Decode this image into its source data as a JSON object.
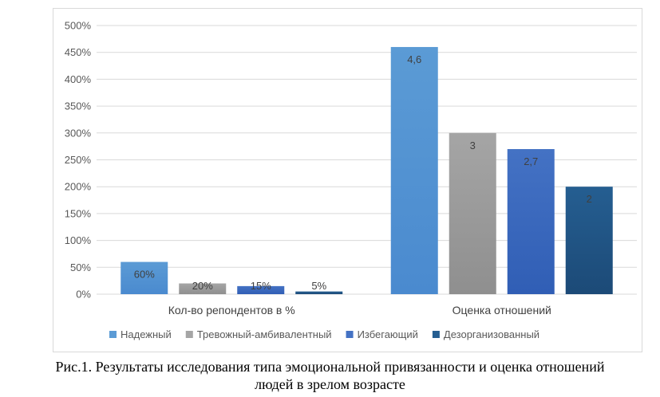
{
  "chart_data": {
    "type": "bar",
    "categories": [
      "Кол-во репондентов в %",
      "Оценка отношений"
    ],
    "series": [
      {
        "name": "Надежный",
        "values": [
          60,
          460
        ],
        "labels": [
          "60%",
          "4,6"
        ],
        "color": "#5B9BD5",
        "color2": "#4A8ACF"
      },
      {
        "name": "Тревожный-амбивалентный",
        "values": [
          20,
          300
        ],
        "labels": [
          "20%",
          "3"
        ],
        "color": "#A5A5A5",
        "color2": "#8F8F8F"
      },
      {
        "name": "Избегающий",
        "values": [
          15,
          270
        ],
        "labels": [
          "15%",
          "2,7"
        ],
        "color": "#4472C4",
        "color2": "#305EB5"
      },
      {
        "name": "Дезорганизованный",
        "values": [
          5,
          200
        ],
        "labels": [
          "5%",
          "2"
        ],
        "color": "#255E91",
        "color2": "#1C4A77"
      }
    ],
    "yticks": [
      "0%",
      "50%",
      "100%",
      "150%",
      "200%",
      "250%",
      "300%",
      "350%",
      "400%",
      "450%",
      "500%"
    ],
    "ylim": [
      0,
      500
    ],
    "grid": true,
    "legend_position": "bottom"
  },
  "caption_line1": "Рис.1. Результаты исследования типа эмоциональной привязанности и оценка отношений",
  "caption_line2": "людей в зрелом возрасте"
}
